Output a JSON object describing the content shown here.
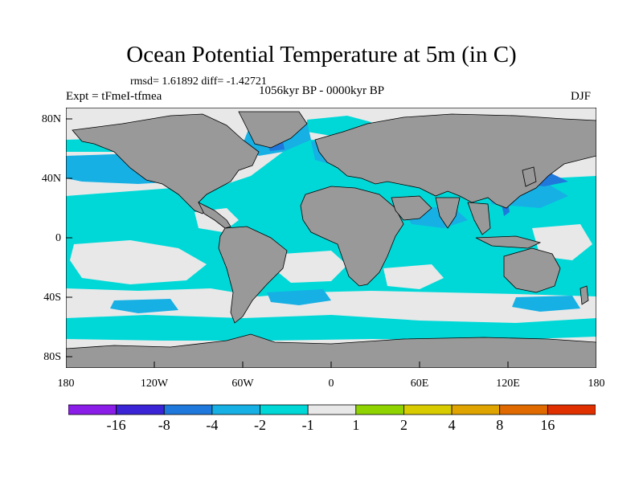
{
  "title": "Ocean Potential Temperature at 5m (in C)",
  "stats": "rmsd= 1.61892 diff= -1.42721",
  "experiment": "Expt = tFmeI-tfmea",
  "period": "1056kyr BP - 0000kyr BP",
  "season": "DJF",
  "colors": {
    "land": "#999999",
    "ocean_light": "#e8e8e8",
    "cyan": "#00d8d8",
    "sky": "#16b0e4",
    "blue": "#1f78dc"
  },
  "chart_data": {
    "type": "heatmap",
    "latitude_ticks": [
      "80N",
      "40N",
      "0",
      "40S",
      "80S"
    ],
    "longitude_ticks": [
      "180",
      "120W",
      "60W",
      "0",
      "60E",
      "120E",
      "180"
    ],
    "colorbar": {
      "labels": [
        "-16",
        "-8",
        "-4",
        "-2",
        "-1",
        "1",
        "2",
        "4",
        "8",
        "16"
      ],
      "colors": [
        "#8a1ee8",
        "#3a24d6",
        "#1f78dc",
        "#16b0e4",
        "#00d8d8",
        "#e8e8e8",
        "#8fd400",
        "#d8cc00",
        "#e0a400",
        "#e06a00",
        "#e03000"
      ]
    }
  }
}
